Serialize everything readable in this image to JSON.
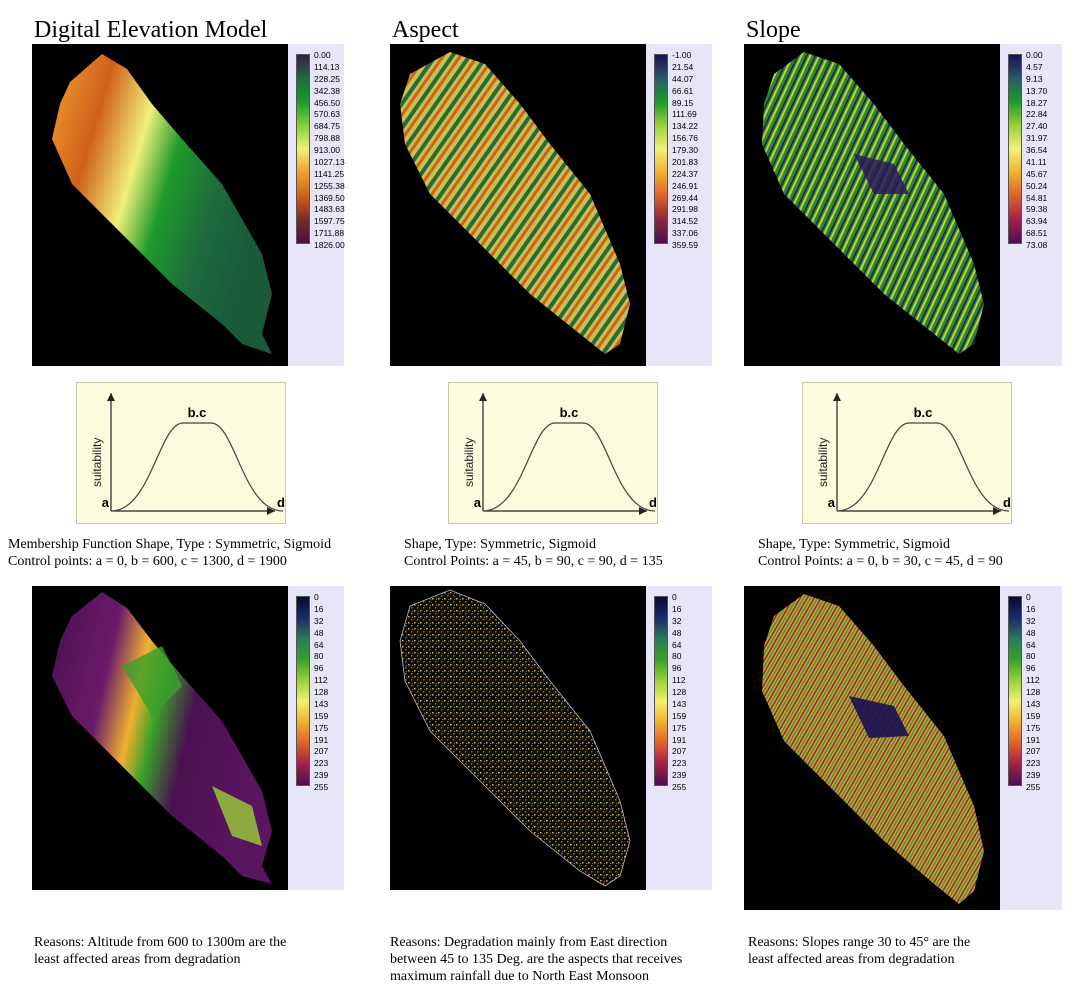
{
  "columns": [
    {
      "title": "Digital Elevation Model",
      "legend_top": [
        "0.00",
        "114.13",
        "228.25",
        "342.38",
        "456.50",
        "570.63",
        "684.75",
        "798.88",
        "913.00",
        "1027.13",
        "1141.25",
        "1255.38",
        "1369.50",
        "1483.63",
        "1597.75",
        "1711.88",
        "1826.00"
      ],
      "palette_top": "dem",
      "curve": {
        "ylabel": "suitability",
        "peak": "b.c",
        "left": "a",
        "right": "d"
      },
      "caption_lines": [
        "Membership Function Shape, Type : Symmetric, Sigmoid",
        "Control points: a = 0, b = 600, c = 1300,  d = 1900"
      ],
      "legend_bottom": [
        "0",
        "16",
        "32",
        "48",
        "64",
        "80",
        "96",
        "112",
        "128",
        "143",
        "159",
        "175",
        "191",
        "207",
        "223",
        "239",
        "255"
      ],
      "reason_lines": [
        "Reasons: Altitude from 600 to 1300m are the",
        "least affected areas from degradation"
      ]
    },
    {
      "title": "Aspect",
      "legend_top": [
        "-1.00",
        "21.54",
        "44.07",
        "66.61",
        "89.15",
        "111.69",
        "134.22",
        "156.76",
        "179.30",
        "201.83",
        "224.37",
        "246.91",
        "269.44",
        "291.98",
        "314.52",
        "337.06",
        "359.59"
      ],
      "palette_top": "aspect",
      "curve": {
        "ylabel": "suitability",
        "peak": "b.c",
        "left": "a",
        "right": "d"
      },
      "caption_lines": [
        "Shape, Type: Symmetric, Sigmoid",
        "Control Points: a = 45, b = 90, c = 90, d = 135"
      ],
      "legend_bottom": [
        "0",
        "16",
        "32",
        "48",
        "64",
        "80",
        "96",
        "112",
        "128",
        "143",
        "159",
        "175",
        "191",
        "207",
        "223",
        "239",
        "255"
      ],
      "reason_lines": [
        "Reasons: Degradation mainly from East direction",
        "between 45 to 135 Deg. are the aspects that receives",
        " maximum rainfall due to North East Monsoon"
      ]
    },
    {
      "title": "Slope",
      "legend_top": [
        "0.00",
        "4.57",
        "9.13",
        "13.70",
        "18.27",
        "22.84",
        "27.40",
        "31.97",
        "36.54",
        "41.11",
        "45.67",
        "50.24",
        "54.81",
        "59.38",
        "63.94",
        "68.51",
        "73.08"
      ],
      "palette_top": "slope",
      "curve": {
        "ylabel": "suitability",
        "peak": "b.c",
        "left": "a",
        "right": "d"
      },
      "caption_lines": [
        "Shape, Type: Symmetric, Sigmoid",
        "Control Points: a = 0, b = 30, c = 45, d = 90"
      ],
      "legend_bottom": [
        "0",
        "16",
        "32",
        "48",
        "64",
        "80",
        "96",
        "112",
        "128",
        "143",
        "159",
        "175",
        "191",
        "207",
        "223",
        "239",
        "255"
      ],
      "reason_lines": [
        "Reasons: Slopes range 30 to 45° are the",
        "least affected areas from degradation"
      ]
    }
  ],
  "colors": {
    "dem_ramp": [
      "#3a1a4a",
      "#1e6b3c",
      "#1f9a2a",
      "#7fd13a",
      "#f0f07a",
      "#f0a030",
      "#d0601a",
      "#7a2a2a",
      "#4a0f3f"
    ],
    "fuzzy_ramp": [
      "#0a0a30",
      "#1a2a6a",
      "#2a7a5a",
      "#3aa02a",
      "#9ad03a",
      "#f0f070",
      "#f0b030",
      "#e0602a",
      "#a0204a",
      "#4a1050"
    ]
  }
}
